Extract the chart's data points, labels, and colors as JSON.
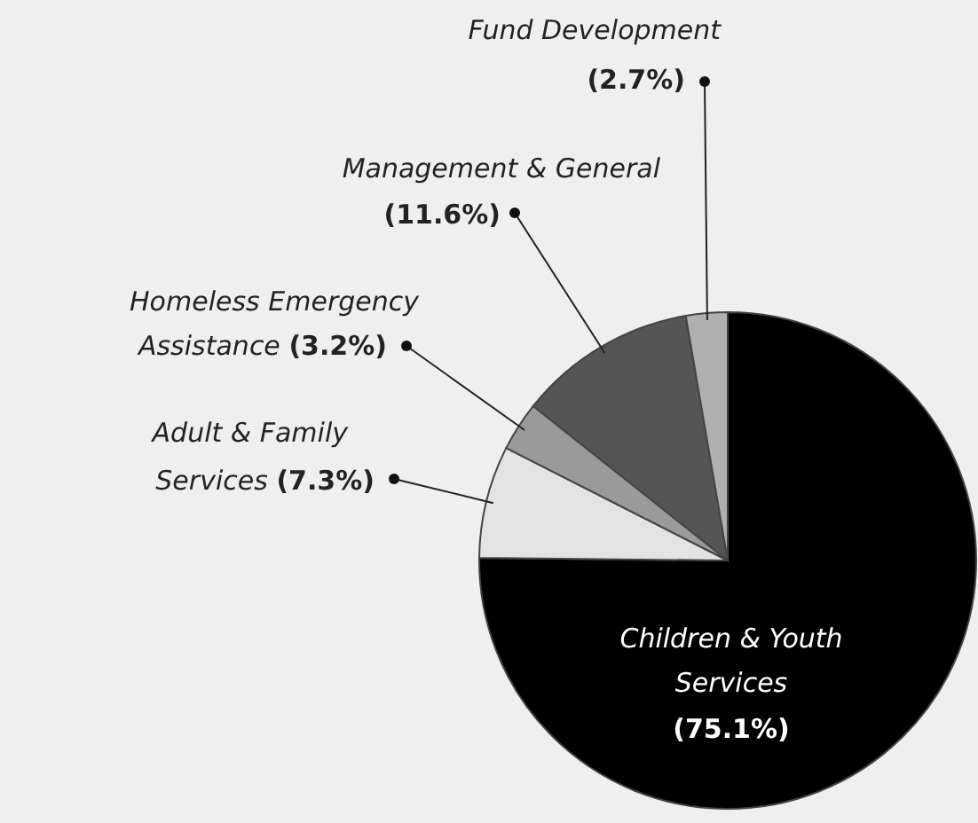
{
  "chart_data": {
    "type": "pie",
    "categories": [
      "Children & Youth Services",
      "Adult & Family Services",
      "Homeless Emergency Assistance",
      "Management & General",
      "Fund Development"
    ],
    "values": [
      75.1,
      7.3,
      3.2,
      11.6,
      2.7
    ],
    "colors": [
      "#000000",
      "#e3e3e3",
      "#9a9a9a",
      "#555555",
      "#b0b0b0"
    ],
    "value_labels": [
      "(75.1%)",
      "(7.3%)",
      "(3.2%)",
      "(11.6%)",
      "(2.7%)"
    ]
  }
}
